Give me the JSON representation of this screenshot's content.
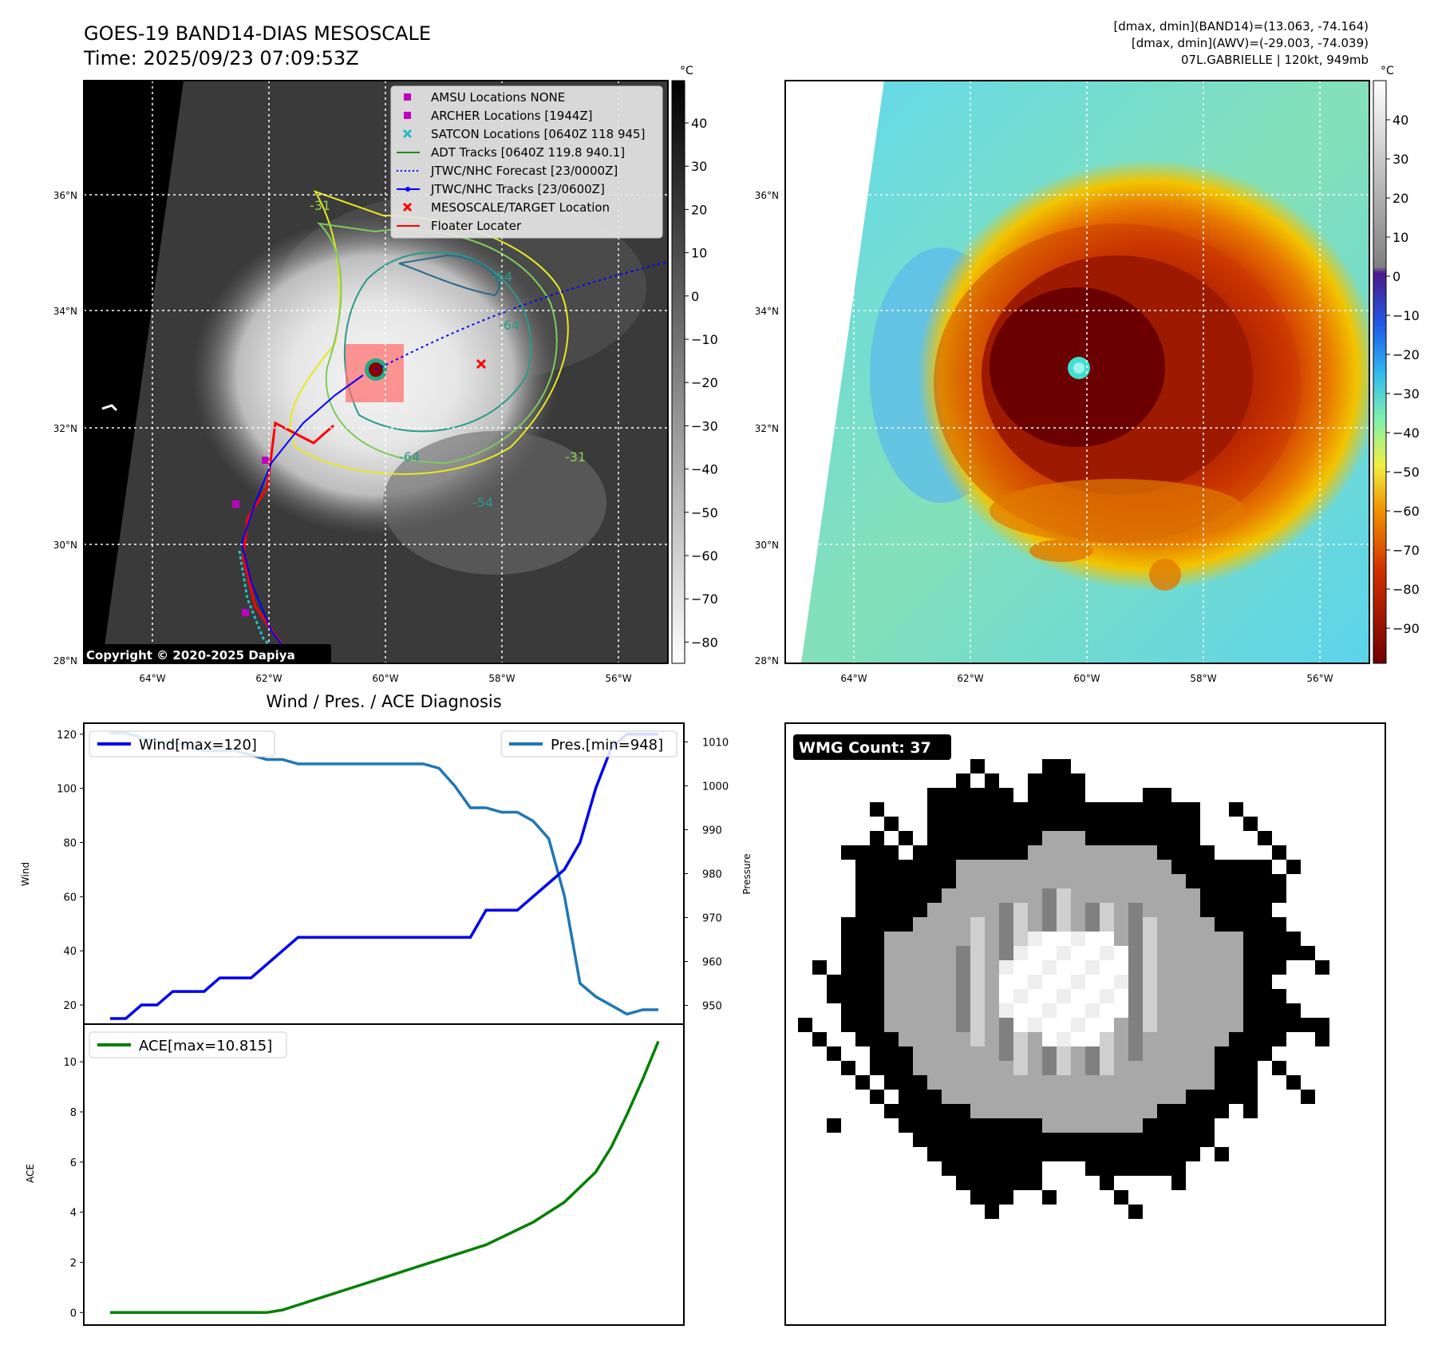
{
  "header": {
    "title": "GOES-19 BAND14-DIAS MESOSCALE",
    "time": "Time: 2025/09/23 07:09:53Z",
    "stats_line1": "[dmax, dmin](BAND14)=(13.063, -74.164)",
    "stats_line2": "[dmax, dmin](AWV)=(-29.003, -74.039)",
    "stats_line3": "07L.GABRIELLE | 120kt, 949mb"
  },
  "map": {
    "lat_labels": [
      "36°N",
      "34°N",
      "32°N",
      "30°N",
      "28°N"
    ],
    "lon_labels": [
      "64°W",
      "62°W",
      "60°W",
      "58°W",
      "56°W"
    ],
    "copyright": "Copyright © 2020-2025 Dapiya",
    "contour_labels": [
      "-31",
      "-54",
      "-64",
      "-64",
      "-54",
      "-31"
    ],
    "legend": [
      {
        "label": "AMSU Locations NONE",
        "marker": "square",
        "color": "#c000c0"
      },
      {
        "label": "ARCHER Locations [1944Z]",
        "marker": "square",
        "color": "#c000c0"
      },
      {
        "label": "SATCON Locations [0640Z 118 945]",
        "marker": "x",
        "color": "#20c0c0"
      },
      {
        "label": "ADT Tracks [0640Z 119.8 940.1]",
        "marker": "line",
        "color": "#1a8a1a"
      },
      {
        "label": "JTWC/NHC Forecast [23/0000Z]",
        "marker": "dotted",
        "color": "#0000ff"
      },
      {
        "label": "JTWC/NHC Tracks [23/0600Z]",
        "marker": "line-dot",
        "color": "#0000ff"
      },
      {
        "label": "MESOSCALE/TARGET Location",
        "marker": "x",
        "color": "#ff0000"
      },
      {
        "label": "Floater Locater",
        "marker": "line",
        "color": "#ff0000"
      }
    ]
  },
  "colorbars": {
    "unit": "°C",
    "gray_ticks": [
      "40",
      "30",
      "20",
      "10",
      "0",
      "−10",
      "−20",
      "−30",
      "−40",
      "−50",
      "−60",
      "−70",
      "−80"
    ],
    "color_ticks": [
      "40",
      "30",
      "20",
      "10",
      "0",
      "−10",
      "−20",
      "−30",
      "−40",
      "−50",
      "−60",
      "−70",
      "−80",
      "−90"
    ]
  },
  "diag": {
    "title": "Wind / Pres. / ACE Diagnosis",
    "wind_legend": "Wind[max=120]",
    "pres_legend": "Pres.[min=948]",
    "ace_legend": "ACE[max=10.815]",
    "wind_axis_label": "Wind",
    "pres_axis_label": "Pressure",
    "ace_axis_label": "ACE"
  },
  "wmg": {
    "label": "WMG Count: 37"
  },
  "colors": {
    "wind": "#0000ee",
    "pressure": "#1f77b4",
    "ace": "#008000"
  },
  "chart_data": [
    {
      "type": "line",
      "name": "wind-pressure",
      "x": [
        0,
        1,
        2,
        3,
        4,
        5,
        6,
        7,
        8,
        9,
        10,
        11,
        12,
        13,
        14,
        15,
        16,
        17,
        18,
        19,
        20,
        21,
        22,
        23,
        24,
        25,
        26,
        27,
        28,
        29,
        30,
        31,
        32,
        33,
        34,
        35
      ],
      "series": [
        {
          "name": "Wind[max=120]",
          "axis": "left",
          "values": [
            15,
            15,
            20,
            20,
            25,
            25,
            25,
            30,
            30,
            30,
            35,
            40,
            45,
            45,
            45,
            45,
            45,
            45,
            45,
            45,
            45,
            45,
            45,
            45,
            55,
            55,
            55,
            60,
            65,
            70,
            80,
            100,
            115,
            120,
            120,
            120
          ]
        },
        {
          "name": "Pres.[min=948]",
          "axis": "right",
          "values": [
            1012,
            1012,
            1011,
            1010,
            1010,
            1009,
            1008,
            1008,
            1008,
            1007,
            1006,
            1006,
            1005,
            1005,
            1005,
            1005,
            1005,
            1005,
            1005,
            1005,
            1005,
            1004,
            1000,
            995,
            995,
            994,
            994,
            992,
            988,
            975,
            955,
            952,
            950,
            948,
            949,
            949
          ]
        }
      ],
      "ylim_left": [
        15,
        122
      ],
      "ylim_right": [
        947,
        1013
      ],
      "yticks_left": [
        20,
        40,
        60,
        80,
        100,
        120
      ],
      "yticks_right": [
        950,
        960,
        970,
        980,
        990,
        1000,
        1010
      ],
      "ylabel": "Wind",
      "ylabel_right": "Pressure"
    },
    {
      "type": "line",
      "name": "ace",
      "x": [
        0,
        1,
        2,
        3,
        4,
        5,
        6,
        7,
        8,
        9,
        10,
        11,
        12,
        13,
        14,
        15,
        16,
        17,
        18,
        19,
        20,
        21,
        22,
        23,
        24,
        25,
        26,
        27,
        28,
        29,
        30,
        31,
        32,
        33,
        34,
        35
      ],
      "series": [
        {
          "name": "ACE[max=10.815]",
          "values": [
            0,
            0,
            0,
            0,
            0,
            0,
            0,
            0,
            0,
            0,
            0,
            0.1,
            0.3,
            0.5,
            0.7,
            0.9,
            1.1,
            1.3,
            1.5,
            1.7,
            1.9,
            2.1,
            2.3,
            2.5,
            2.7,
            3.0,
            3.3,
            3.6,
            4.0,
            4.4,
            5.0,
            5.6,
            6.6,
            7.9,
            9.3,
            10.815
          ]
        }
      ],
      "ylim": [
        -0.5,
        11.5
      ],
      "yticks": [
        0,
        2,
        4,
        6,
        8,
        10
      ],
      "ylabel": "ACE"
    }
  ]
}
